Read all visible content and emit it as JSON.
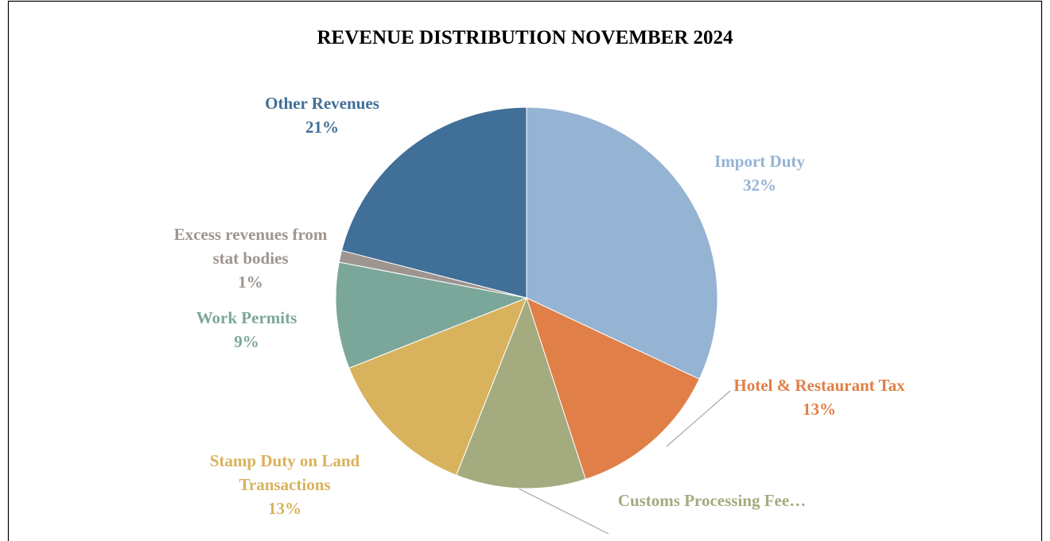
{
  "chart_data": {
    "type": "pie",
    "title": "REVENUE DISTRIBUTION NOVEMBER 2024",
    "categories": [
      "Import Duty",
      "Hotel & Restaurant Tax",
      "Customs Processing Fee…",
      "Stamp Duty on Land Transactions",
      "Work Permits",
      "Excess revenues from stat bodies",
      "Other Revenues"
    ],
    "values": [
      32,
      13,
      11,
      13,
      9,
      1,
      21
    ],
    "value_labels": [
      "32%",
      "13%",
      null,
      "13%",
      "9%",
      "1%",
      "21%"
    ],
    "colors": [
      "#95b3d3",
      "#e07f47",
      "#a4ab7f",
      "#d8b25c",
      "#7ba79a",
      "#9e9590",
      "#406f98"
    ]
  }
}
